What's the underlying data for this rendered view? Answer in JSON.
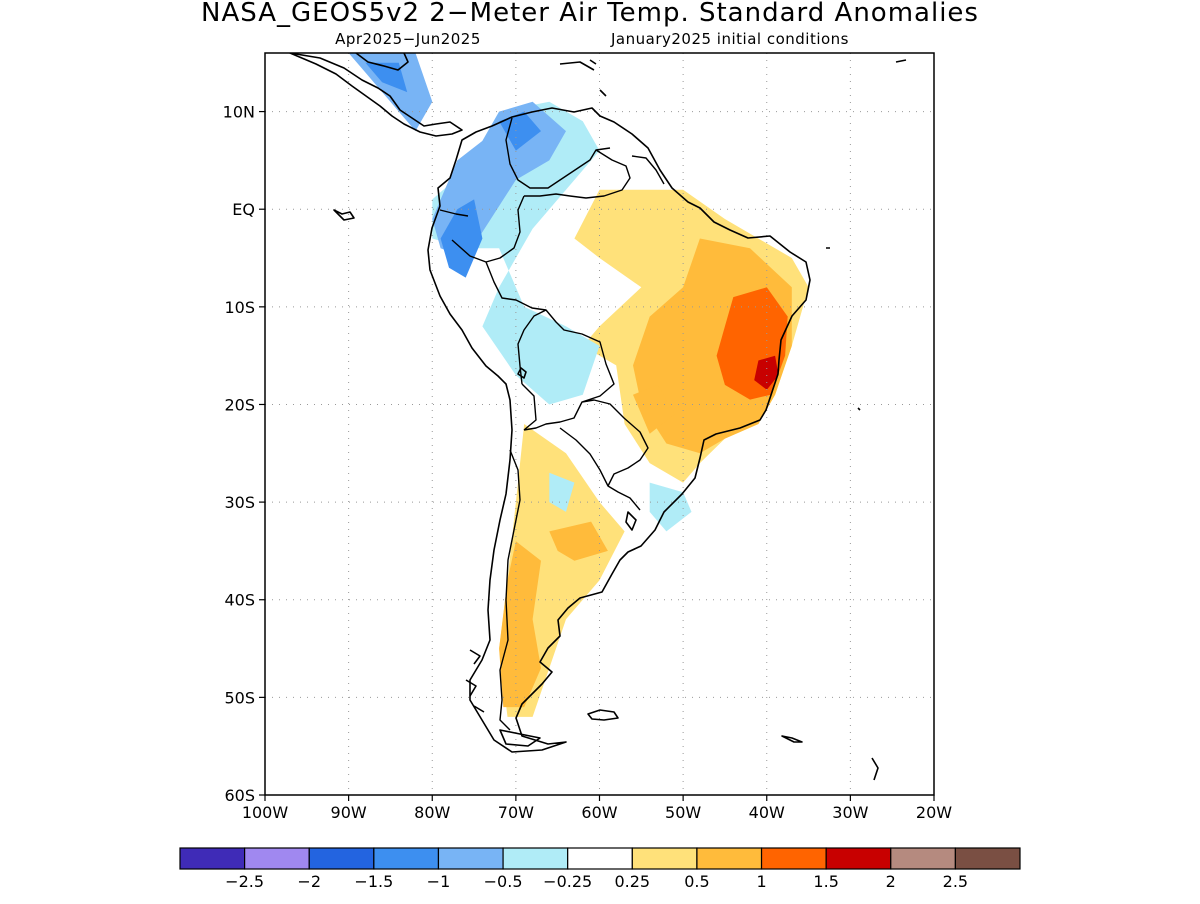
{
  "title": "NASA_GEOS5v2 2−Meter Air Temp. Standard Anomalies",
  "subtitle_left": "Apr2025−Jun2025",
  "subtitle_right": "January2025 initial conditions",
  "map": {
    "lon_range": [
      -100,
      -20
    ],
    "lat_range": [
      -60,
      16
    ],
    "lat_ticks": [
      {
        "value": 10,
        "label": "10N"
      },
      {
        "value": 0,
        "label": "EQ"
      },
      {
        "value": -10,
        "label": "10S"
      },
      {
        "value": -20,
        "label": "20S"
      },
      {
        "value": -30,
        "label": "30S"
      },
      {
        "value": -40,
        "label": "40S"
      },
      {
        "value": -50,
        "label": "50S"
      },
      {
        "value": -60,
        "label": "60S"
      }
    ],
    "lon_ticks": [
      {
        "value": -100,
        "label": "100W"
      },
      {
        "value": -90,
        "label": "90W"
      },
      {
        "value": -80,
        "label": "80W"
      },
      {
        "value": -70,
        "label": "70W"
      },
      {
        "value": -60,
        "label": "60W"
      },
      {
        "value": -50,
        "label": "50W"
      },
      {
        "value": -40,
        "label": "40W"
      },
      {
        "value": -30,
        "label": "30W"
      },
      {
        "value": -20,
        "label": "20W"
      }
    ]
  },
  "colorbar": {
    "colors": [
      "#3f2bb7",
      "#a088f0",
      "#2364e0",
      "#3d8ff0",
      "#78b4f5",
      "#b0ecf7",
      "#ffffff",
      "#ffe17a",
      "#ffbb3b",
      "#ff6400",
      "#c80000",
      "#b58a7f",
      "#7a4f43"
    ],
    "labels": [
      "−2.5",
      "−2",
      "−1.5",
      "−1",
      "−0.5",
      "−0.25",
      "0.25",
      "0.5",
      "1",
      "1.5",
      "2",
      "2.5"
    ]
  },
  "anomaly_regions": [
    {
      "level": 0.25,
      "color": "#ffe17a",
      "points": [
        [
          -60,
          2
        ],
        [
          -50,
          2
        ],
        [
          -45,
          -1
        ],
        [
          -37,
          -5
        ],
        [
          -35,
          -8
        ],
        [
          -37,
          -14
        ],
        [
          -39,
          -19
        ],
        [
          -41,
          -22
        ],
        [
          -45,
          -23.5
        ],
        [
          -48,
          -26
        ],
        [
          -50,
          -28
        ],
        [
          -54,
          -26
        ],
        [
          -57,
          -22
        ],
        [
          -58,
          -16
        ],
        [
          -62,
          -14
        ],
        [
          -60,
          -12
        ],
        [
          -55,
          -8
        ],
        [
          -60,
          -5
        ],
        [
          -63,
          -3
        ]
      ]
    },
    {
      "level": 0.5,
      "color": "#ffbb3b",
      "points": [
        [
          -48,
          -3
        ],
        [
          -42,
          -4
        ],
        [
          -37,
          -8
        ],
        [
          -37,
          -14
        ],
        [
          -39,
          -19
        ],
        [
          -41,
          -22
        ],
        [
          -45,
          -23.5
        ],
        [
          -48,
          -25
        ],
        [
          -52,
          -24
        ],
        [
          -55,
          -20
        ],
        [
          -56,
          -16
        ],
        [
          -54,
          -11
        ],
        [
          -50,
          -8
        ]
      ]
    },
    {
      "level": 1.0,
      "color": "#ff6400",
      "points": [
        [
          -44,
          -9
        ],
        [
          -40,
          -8
        ],
        [
          -37.5,
          -11
        ],
        [
          -37.8,
          -15
        ],
        [
          -39.5,
          -19
        ],
        [
          -42,
          -19.5
        ],
        [
          -45,
          -18
        ],
        [
          -46,
          -15
        ],
        [
          -45,
          -12
        ]
      ]
    },
    {
      "level": 1.5,
      "color": "#c80000",
      "points": [
        [
          -41,
          -15.5
        ],
        [
          -39,
          -15
        ],
        [
          -38.6,
          -17
        ],
        [
          -40,
          -18.5
        ],
        [
          -41.5,
          -17.5
        ]
      ]
    },
    {
      "level": 0.25,
      "color": "#ffe17a",
      "points": [
        [
          -69,
          -22
        ],
        [
          -64,
          -25
        ],
        [
          -60,
          -30
        ],
        [
          -57,
          -33
        ],
        [
          -60,
          -38
        ],
        [
          -64,
          -42
        ],
        [
          -66,
          -47
        ],
        [
          -68,
          -52
        ],
        [
          -71,
          -52
        ],
        [
          -72,
          -45
        ],
        [
          -71,
          -38
        ],
        [
          -70,
          -30
        ]
      ]
    },
    {
      "level": 0.5,
      "color": "#ffbb3b",
      "points": [
        [
          -70,
          -34
        ],
        [
          -67,
          -36
        ],
        [
          -68,
          -42
        ],
        [
          -67,
          -47
        ],
        [
          -69,
          -51
        ],
        [
          -71.5,
          -51
        ],
        [
          -72,
          -45
        ],
        [
          -71,
          -38
        ]
      ]
    },
    {
      "level": 0.5,
      "color": "#ffbb3b",
      "points": [
        [
          -66,
          -33
        ],
        [
          -61,
          -32
        ],
        [
          -59,
          -35
        ],
        [
          -63,
          -36
        ],
        [
          -65,
          -35
        ]
      ]
    },
    {
      "level": 0.5,
      "color": "#ffbb3b",
      "points": [
        [
          -56,
          -19
        ],
        [
          -53,
          -18
        ],
        [
          -51,
          -21
        ],
        [
          -54,
          -23
        ]
      ]
    },
    {
      "level": -0.25,
      "color": "#b0ecf7",
      "points": [
        [
          -80,
          1
        ],
        [
          -76,
          4
        ],
        [
          -72,
          10
        ],
        [
          -66,
          11
        ],
        [
          -62,
          9
        ],
        [
          -60,
          6
        ],
        [
          -64,
          2
        ],
        [
          -68,
          -2
        ],
        [
          -72,
          -8
        ],
        [
          -74,
          -12
        ],
        [
          -70,
          -17
        ],
        [
          -66,
          -20
        ],
        [
          -62,
          -19
        ],
        [
          -60,
          -14
        ],
        [
          -64,
          -12
        ],
        [
          -69,
          -10
        ],
        [
          -72,
          -4
        ],
        [
          -76,
          -4
        ],
        [
          -80,
          -3
        ]
      ]
    },
    {
      "level": -0.5,
      "color": "#78b4f5",
      "points": [
        [
          -77,
          5
        ],
        [
          -74,
          7
        ],
        [
          -72,
          10
        ],
        [
          -68,
          11
        ],
        [
          -64,
          8
        ],
        [
          -66,
          5
        ],
        [
          -70,
          3
        ],
        [
          -73,
          -1
        ],
        [
          -76,
          -5
        ],
        [
          -79,
          -4
        ],
        [
          -80,
          -1
        ]
      ]
    },
    {
      "level": -1.0,
      "color": "#3d8ff0",
      "points": [
        [
          -77,
          0
        ],
        [
          -75,
          1
        ],
        [
          -74,
          -3
        ],
        [
          -76,
          -7
        ],
        [
          -78,
          -6
        ],
        [
          -79,
          -3
        ]
      ]
    },
    {
      "level": -1.0,
      "color": "#3d8ff0",
      "points": [
        [
          -72,
          9
        ],
        [
          -69,
          10
        ],
        [
          -67,
          8
        ],
        [
          -70,
          6
        ]
      ]
    },
    {
      "level": -0.5,
      "color": "#78b4f5",
      "points": [
        [
          -90,
          16
        ],
        [
          -82,
          16
        ],
        [
          -80,
          11
        ],
        [
          -82,
          8
        ],
        [
          -85,
          11
        ],
        [
          -88,
          14
        ]
      ]
    },
    {
      "level": -1.0,
      "color": "#3d8ff0",
      "points": [
        [
          -88,
          15
        ],
        [
          -84,
          15
        ],
        [
          -83,
          12
        ],
        [
          -86,
          13
        ]
      ]
    },
    {
      "level": -0.25,
      "color": "#b0ecf7",
      "points": [
        [
          -54,
          -28
        ],
        [
          -50,
          -29
        ],
        [
          -49,
          -31
        ],
        [
          -52,
          -33
        ],
        [
          -54,
          -31
        ]
      ]
    },
    {
      "level": -0.25,
      "color": "#b0ecf7",
      "points": [
        [
          -66,
          -27
        ],
        [
          -63,
          -28
        ],
        [
          -64,
          -31
        ],
        [
          -66,
          -30
        ]
      ]
    }
  ]
}
